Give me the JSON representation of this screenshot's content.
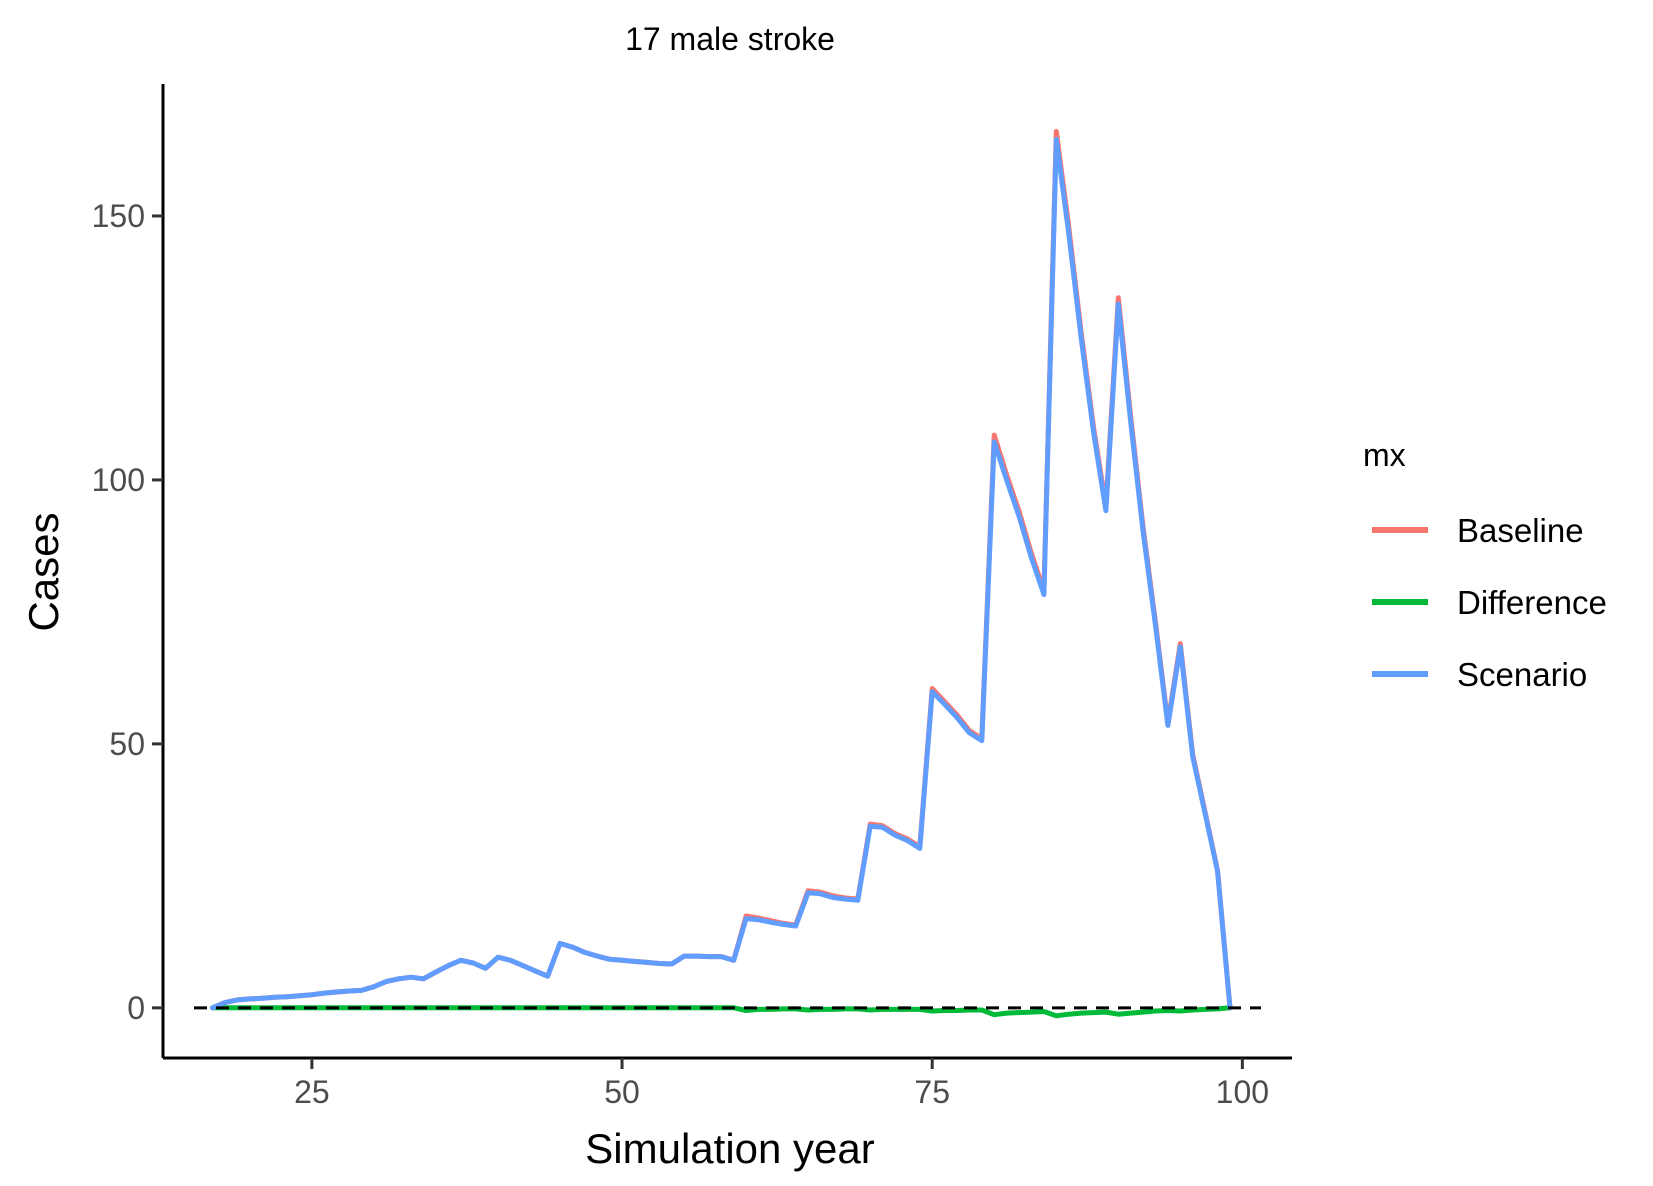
{
  "chart_data": {
    "type": "line",
    "title": "17 male stroke",
    "xlabel": "Simulation year",
    "ylabel": "Cases",
    "xlim": [
      13,
      104
    ],
    "ylim": [
      -9.5,
      175
    ],
    "x_ticks": [
      25,
      50,
      75,
      100
    ],
    "y_ticks": [
      0,
      50,
      100,
      150
    ],
    "grid": false,
    "reference_line": {
      "y": 0,
      "style": "dashed",
      "color": "#000000"
    },
    "legend": {
      "title": "mx",
      "position": "right",
      "entries": [
        "Baseline",
        "Difference",
        "Scenario"
      ]
    },
    "x": [
      17,
      18,
      19,
      20,
      21,
      22,
      23,
      24,
      25,
      26,
      27,
      28,
      29,
      30,
      31,
      32,
      33,
      34,
      35,
      36,
      37,
      38,
      39,
      40,
      41,
      42,
      43,
      44,
      45,
      46,
      47,
      48,
      49,
      50,
      51,
      52,
      53,
      54,
      55,
      56,
      57,
      58,
      59,
      60,
      61,
      62,
      63,
      64,
      65,
      66,
      67,
      68,
      69,
      70,
      71,
      72,
      73,
      74,
      75,
      76,
      77,
      78,
      79,
      80,
      81,
      82,
      83,
      84,
      85,
      86,
      87,
      88,
      89,
      90,
      91,
      92,
      93,
      94,
      95,
      96,
      97,
      98,
      99
    ],
    "series": [
      {
        "name": "Baseline",
        "color": "#F8766D",
        "values": [
          0,
          1,
          1.5,
          1.7,
          1.8,
          2,
          2.1,
          2.3,
          2.5,
          2.8,
          3,
          3.2,
          3.3,
          4,
          5,
          5.5,
          5.8,
          5.5,
          6.8,
          8,
          9,
          8.5,
          7.5,
          9.6,
          9,
          8,
          7,
          6,
          12.2,
          11.5,
          10.5,
          9.8,
          9.2,
          9,
          8.8,
          8.6,
          8.4,
          8.3,
          9.8,
          9.8,
          9.7,
          9.7,
          9,
          17.4,
          17,
          16.5,
          16,
          15.7,
          22.2,
          21.9,
          21.2,
          20.8,
          20.6,
          34.8,
          34.5,
          33,
          32,
          30.5,
          60.5,
          58,
          55.5,
          52.5,
          51,
          108.5,
          101,
          94,
          86,
          79,
          166,
          148,
          128,
          110,
          95,
          134.5,
          112,
          91,
          73,
          54,
          69,
          48,
          37,
          26,
          0
        ]
      },
      {
        "name": "Difference",
        "color": "#00BA38",
        "values": [
          0,
          0,
          0,
          0,
          0,
          0,
          0,
          0,
          0,
          0,
          0,
          0,
          0,
          0,
          0,
          0,
          0,
          0,
          0,
          0,
          0,
          0,
          0,
          0,
          0,
          0,
          0,
          0,
          0,
          0,
          0,
          0,
          0,
          0,
          0,
          0,
          0,
          0,
          0,
          0,
          0,
          0,
          0,
          -0.5,
          -0.3,
          -0.3,
          -0.2,
          -0.2,
          -0.4,
          -0.3,
          -0.3,
          -0.2,
          -0.2,
          -0.4,
          -0.3,
          -0.3,
          -0.3,
          -0.3,
          -0.6,
          -0.5,
          -0.5,
          -0.4,
          -0.4,
          -1.3,
          -1,
          -0.9,
          -0.8,
          -0.7,
          -1.5,
          -1.2,
          -1,
          -0.9,
          -0.8,
          -1.2,
          -1,
          -0.8,
          -0.6,
          -0.5,
          -0.6,
          -0.4,
          -0.3,
          -0.2,
          0
        ]
      },
      {
        "name": "Scenario",
        "color": "#619CFF",
        "values": [
          0,
          1,
          1.5,
          1.7,
          1.8,
          2,
          2.1,
          2.3,
          2.5,
          2.8,
          3,
          3.2,
          3.3,
          4,
          5,
          5.5,
          5.8,
          5.5,
          6.8,
          8,
          9,
          8.5,
          7.5,
          9.6,
          9,
          8,
          7,
          6,
          12.2,
          11.5,
          10.5,
          9.8,
          9.2,
          9,
          8.8,
          8.6,
          8.4,
          8.3,
          9.8,
          9.8,
          9.7,
          9.7,
          9,
          16.9,
          16.7,
          16.2,
          15.8,
          15.5,
          21.8,
          21.6,
          20.9,
          20.6,
          20.4,
          34.4,
          34.2,
          32.7,
          31.7,
          30.2,
          59.9,
          57.5,
          55,
          52.1,
          50.6,
          107.2,
          100,
          93.1,
          85.2,
          78.3,
          164.5,
          146.8,
          127,
          109.1,
          94.2,
          133.3,
          111,
          90.2,
          72.4,
          53.5,
          68.4,
          47.6,
          36.7,
          25.8,
          0
        ]
      }
    ]
  }
}
